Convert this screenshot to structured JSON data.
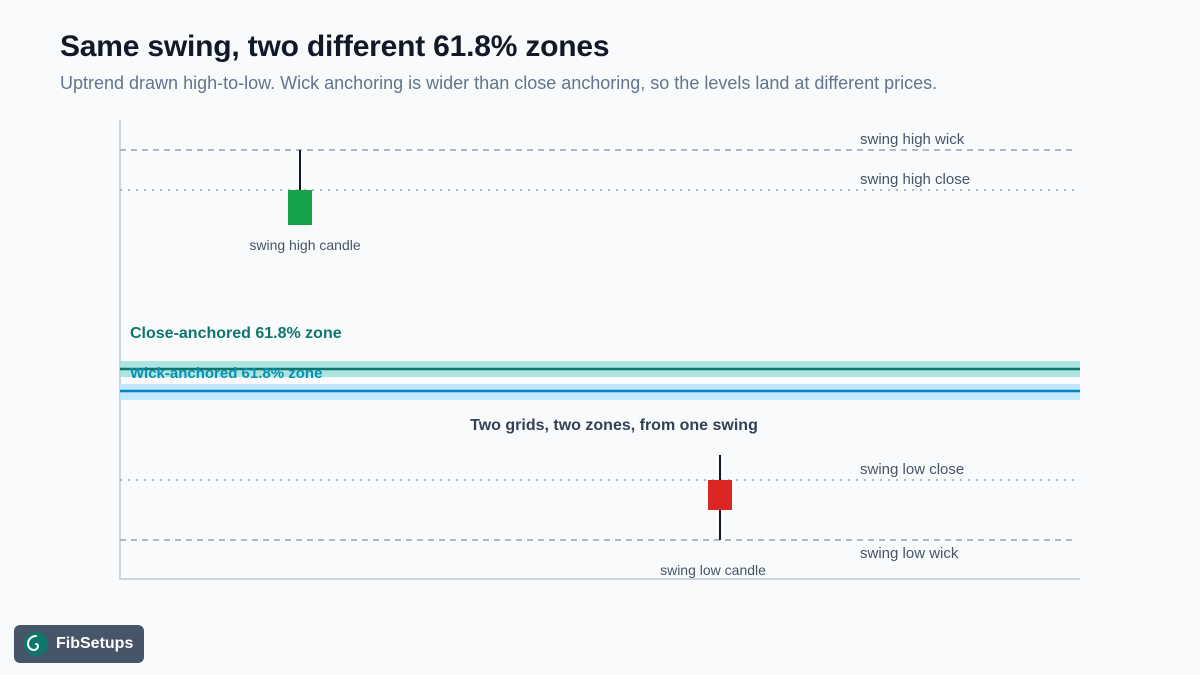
{
  "header": {
    "title": "Same swing, two different 61.8% zones",
    "subtitle": "Uptrend drawn high-to-low. Wick anchoring is wider than close anchoring, so the levels land at different prices."
  },
  "diagram": {
    "levels": {
      "swing_high_wick": "swing high wick",
      "swing_high_close": "swing high close",
      "swing_low_close": "swing low close",
      "swing_low_wick": "swing low wick"
    },
    "candles": {
      "high_label": "swing high candle",
      "low_label": "swing low candle"
    },
    "zones": {
      "close_label": "Close-anchored 61.8% zone",
      "wick_label": "Wick-anchored 61.8% zone"
    },
    "caption": "Two grids, two zones, from one swing"
  },
  "colors": {
    "bull_candle": "#16a34a",
    "bear_candle": "#dc2626",
    "close_zone": "#0f766e",
    "wick_zone": "#0284c7",
    "title": "#111827",
    "subtitle": "#64748b"
  },
  "brand": {
    "name": "FibSetups",
    "icon": "spiral-logo-icon"
  }
}
